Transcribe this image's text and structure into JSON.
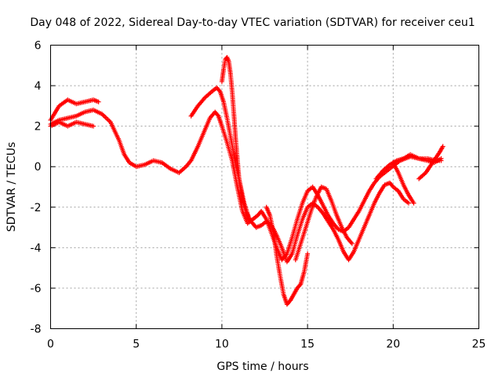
{
  "chart_data": {
    "type": "scatter",
    "title": "Day 048 of 2022, Sidereal Day-to-day VTEC variation (SDTVAR) for receiver ceu1",
    "xlabel": "GPS time / hours",
    "ylabel": "SDTVAR / TECUs",
    "xlim": [
      0,
      25
    ],
    "ylim": [
      -8,
      6
    ],
    "xticks": [
      0,
      5,
      10,
      15,
      20,
      25
    ],
    "yticks": [
      -8,
      -6,
      -4,
      -2,
      0,
      2,
      4,
      6
    ],
    "grid": true,
    "marker": "plus",
    "color": "#ff0000",
    "series": [
      {
        "x": [
          0.0,
          0.5,
          1.0,
          1.5,
          2.0,
          2.5,
          2.8
        ],
        "y": [
          2.3,
          3.0,
          3.3,
          3.1,
          3.2,
          3.3,
          3.2
        ]
      },
      {
        "x": [
          0.0,
          0.5,
          1.0,
          1.5,
          2.0,
          2.5
        ],
        "y": [
          2.0,
          2.2,
          2.0,
          2.2,
          2.1,
          2.0
        ]
      },
      {
        "x": [
          0.0,
          0.5,
          1.0,
          1.5,
          2.0,
          2.5,
          3.0,
          3.5,
          4.0,
          4.3,
          4.6,
          5.0,
          5.5,
          6.0,
          6.5,
          7.0,
          7.5,
          7.9,
          8.2,
          8.6,
          9.0,
          9.3,
          9.6,
          9.8,
          10.0,
          10.3,
          10.6,
          10.9,
          11.2,
          11.5,
          11.8,
          12.1,
          12.3,
          12.6,
          12.9,
          13.2,
          13.5,
          13.8,
          14.1,
          14.4,
          14.7,
          15.0,
          15.3,
          15.6,
          15.9,
          16.2,
          16.5,
          16.8,
          17.1,
          17.4,
          17.7,
          18.0,
          18.3,
          18.6,
          18.9,
          19.2,
          19.5,
          19.8,
          20.1,
          20.4,
          20.7,
          21.0,
          21.5,
          22.0,
          22.5,
          22.8
        ],
        "y": [
          2.1,
          2.3,
          2.4,
          2.5,
          2.7,
          2.8,
          2.6,
          2.2,
          1.3,
          0.6,
          0.2,
          0.0,
          0.1,
          0.3,
          0.2,
          -0.1,
          -0.3,
          0.0,
          0.3,
          1.0,
          1.8,
          2.4,
          2.7,
          2.5,
          2.0,
          1.2,
          0.3,
          -1.0,
          -2.2,
          -2.8,
          -2.6,
          -2.4,
          -2.2,
          -2.6,
          -3.3,
          -4.0,
          -4.6,
          -4.3,
          -3.5,
          -2.6,
          -1.8,
          -1.2,
          -1.0,
          -1.4,
          -1.9,
          -2.4,
          -2.8,
          -3.1,
          -3.2,
          -3.0,
          -2.6,
          -2.2,
          -1.7,
          -1.2,
          -0.8,
          -0.5,
          -0.3,
          -0.1,
          0.1,
          0.3,
          0.4,
          0.5,
          0.4,
          0.4,
          0.3,
          0.3
        ]
      },
      {
        "x": [
          8.2,
          8.6,
          9.0,
          9.4,
          9.7,
          9.9,
          10.1,
          10.3,
          10.5,
          10.7,
          11.0,
          11.3,
          11.6,
          12.0,
          12.3,
          12.6,
          12.9,
          13.2,
          13.5,
          13.8,
          14.1,
          14.4,
          14.7,
          15.0,
          15.3,
          15.6,
          15.9,
          16.2,
          16.5,
          16.8,
          17.1,
          17.4,
          17.7,
          18.0,
          18.3,
          18.6,
          18.9,
          19.2,
          19.5,
          19.8,
          20.0,
          20.3,
          20.6,
          20.9
        ],
        "y": [
          2.5,
          3.0,
          3.4,
          3.7,
          3.9,
          3.7,
          3.2,
          2.4,
          1.5,
          0.6,
          -0.6,
          -1.8,
          -2.6,
          -3.0,
          -2.9,
          -2.7,
          -2.9,
          -3.4,
          -4.0,
          -4.7,
          -4.3,
          -3.4,
          -2.6,
          -2.0,
          -1.8,
          -2.0,
          -2.3,
          -2.7,
          -3.1,
          -3.6,
          -4.2,
          -4.6,
          -4.2,
          -3.6,
          -3.0,
          -2.4,
          -1.8,
          -1.3,
          -0.9,
          -0.8,
          -1.0,
          -1.2,
          -1.6,
          -1.8
        ]
      },
      {
        "x": [
          10.0,
          10.1,
          10.2,
          10.3,
          10.4,
          10.5,
          10.6,
          10.7,
          10.8,
          10.9,
          11.0,
          11.2,
          11.4,
          11.6
        ],
        "y": [
          4.2,
          4.8,
          5.3,
          5.4,
          5.2,
          4.6,
          3.7,
          2.6,
          1.4,
          0.4,
          -0.6,
          -1.6,
          -2.2,
          -2.6
        ]
      },
      {
        "x": [
          12.6,
          12.8,
          13.0,
          13.2,
          13.4,
          13.6,
          13.8,
          14.0,
          14.2,
          14.4,
          14.6,
          14.8,
          15.0
        ],
        "y": [
          -2.0,
          -2.4,
          -3.2,
          -4.4,
          -5.4,
          -6.3,
          -6.8,
          -6.6,
          -6.3,
          -6.0,
          -5.8,
          -5.2,
          -4.3
        ]
      },
      {
        "x": [
          14.3,
          14.6,
          14.9,
          15.2,
          15.5,
          15.8,
          16.1,
          16.4,
          16.7,
          17.0,
          17.3,
          17.6
        ],
        "y": [
          -4.6,
          -3.8,
          -3.0,
          -2.2,
          -1.5,
          -1.0,
          -1.1,
          -1.7,
          -2.4,
          -3.0,
          -3.5,
          -3.8
        ]
      },
      {
        "x": [
          19.0,
          19.4,
          19.8,
          20.2,
          20.6,
          21.0,
          21.5,
          22.0,
          22.4,
          22.8
        ],
        "y": [
          -0.6,
          -0.2,
          0.1,
          0.3,
          0.4,
          0.6,
          0.4,
          0.3,
          0.2,
          0.4
        ]
      },
      {
        "x": [
          20.0,
          20.3,
          20.6,
          20.9,
          21.2
        ],
        "y": [
          0.2,
          -0.3,
          -0.9,
          -1.4,
          -1.8
        ]
      },
      {
        "x": [
          21.5,
          21.9,
          22.3,
          22.7,
          22.9
        ],
        "y": [
          -0.6,
          -0.3,
          0.2,
          0.7,
          1.0
        ]
      }
    ]
  }
}
